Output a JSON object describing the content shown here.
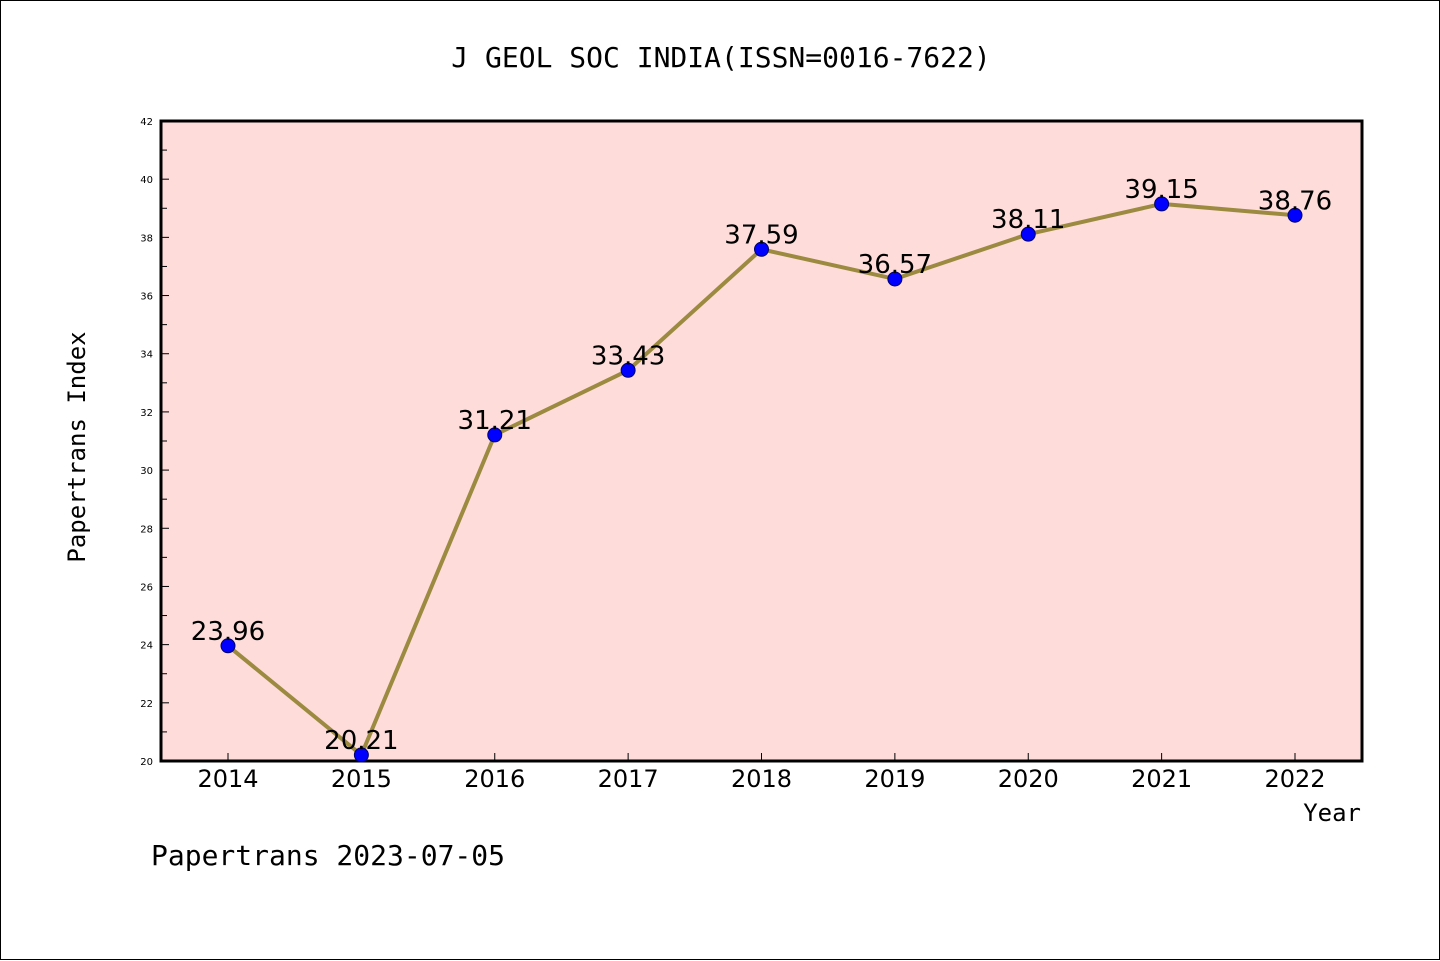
{
  "chart_data": {
    "type": "line",
    "title": "J GEOL SOC INDIA(ISSN=0016-7622)",
    "xlabel": "Year",
    "ylabel": "Papertrans Index",
    "categories": [
      "2014",
      "2015",
      "2016",
      "2017",
      "2018",
      "2019",
      "2020",
      "2021",
      "2022"
    ],
    "series": [
      {
        "values": [
          23.96,
          20.21,
          31.21,
          33.43,
          37.59,
          36.57,
          38.11,
          39.15,
          38.76
        ],
        "labels": [
          "23.96",
          "20.21",
          "31.21",
          "33.43",
          "37.59",
          "36.57",
          "38.11",
          "39.15",
          "38.76"
        ]
      }
    ],
    "ylim": [
      20,
      42
    ],
    "yticks": [
      "20",
      "22",
      "24",
      "26",
      "28",
      "30",
      "32",
      "34",
      "36",
      "38",
      "40",
      "42"
    ],
    "grid": false,
    "colors": {
      "plot_background": "#fddcda",
      "line": "#9b8a3f",
      "marker": "#0000ff"
    }
  },
  "footer": "Papertrans 2023-07-05"
}
